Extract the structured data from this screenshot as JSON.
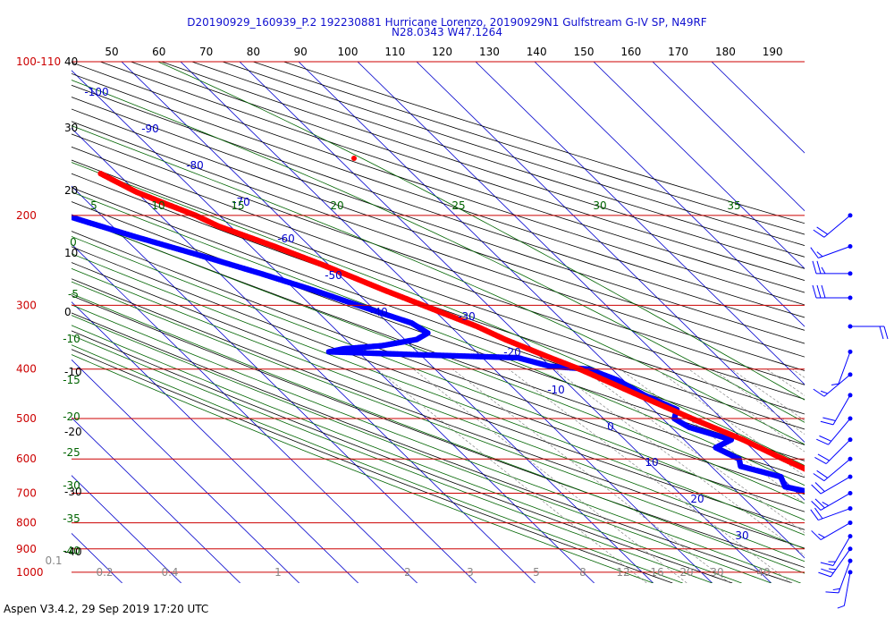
{
  "title": {
    "line1": "D20190929_160939_P.2 192230881 Hurricane Lorenzo, 20190929N1 Gulfstream G-IV SP, N49RF",
    "line2": "N28.0343 W47.1264"
  },
  "footer": "Aspen V3.4.2, 29 Sep 2019  17:20 UTC",
  "colors": {
    "temperature": "#ff0000",
    "dewpoint": "#0000ff",
    "isobar": "#cc0000",
    "isotherm": "#0000cc",
    "dry_adiabat": "#000000",
    "moist_adiabat": "#006400",
    "mixing_ratio": "#888888",
    "title": "#1010d0"
  },
  "chart_data": {
    "type": "skew-t log-p sounding",
    "y_axis_pressure_hPa": [
      "100-110",
      "200",
      "300",
      "400",
      "500",
      "600",
      "700",
      "800",
      "900",
      "1000"
    ],
    "y_axis_height_kft": [
      "40",
      "30",
      "20",
      "10",
      "0",
      "-10",
      "-20",
      "-30",
      "-40"
    ],
    "top_axis_temperature_F": [
      "50",
      "60",
      "70",
      "80",
      "90",
      "100",
      "110",
      "120",
      "130",
      "140",
      "150",
      "160",
      "170",
      "180",
      "190"
    ],
    "isotherm_labels_C": [
      "-100",
      "-90",
      "-80",
      "-70",
      "-60",
      "-50",
      "-40",
      "-30",
      "-20",
      "-10",
      "0",
      "10",
      "20",
      "30"
    ],
    "moist_adiabat_labels_C": [
      "5",
      "10",
      "15",
      "20",
      "25",
      "30",
      "35",
      "0",
      "-5",
      "-10",
      "-15",
      "-20",
      "-25",
      "-30",
      "-35",
      "-40"
    ],
    "mixing_ratio_labels_gkg": [
      "0.1",
      "0.2",
      "0.4",
      "1",
      "2",
      "3",
      "5",
      "8",
      "12",
      "16",
      "20",
      "30",
      "40"
    ],
    "temperature_profile_C": [
      {
        "p": 1000,
        "t": 27.5
      },
      {
        "p": 980,
        "t": 25
      },
      {
        "p": 950,
        "t": 24
      },
      {
        "p": 900,
        "t": 21.5
      },
      {
        "p": 850,
        "t": 18.5
      },
      {
        "p": 800,
        "t": 16
      },
      {
        "p": 750,
        "t": 14
      },
      {
        "p": 700,
        "t": 11
      },
      {
        "p": 650,
        "t": 7
      },
      {
        "p": 600,
        "t": 3.5
      },
      {
        "p": 550,
        "t": 0
      },
      {
        "p": 500,
        "t": -5
      },
      {
        "p": 450,
        "t": -10
      },
      {
        "p": 400,
        "t": -15.5
      },
      {
        "p": 380,
        "t": -18.5
      },
      {
        "p": 350,
        "t": -23
      },
      {
        "p": 330,
        "t": -25.5
      },
      {
        "p": 300,
        "t": -31
      },
      {
        "p": 280,
        "t": -35
      },
      {
        "p": 250,
        "t": -41
      },
      {
        "p": 230,
        "t": -46
      },
      {
        "p": 210,
        "t": -52
      },
      {
        "p": 200,
        "t": -54
      },
      {
        "p": 190,
        "t": -57
      },
      {
        "p": 180,
        "t": -60
      },
      {
        "p": 170,
        "t": -62
      },
      {
        "p": 165,
        "t": -63
      }
    ],
    "dewpoint_profile_C": [
      {
        "p": 1000,
        "t": 22
      },
      {
        "p": 980,
        "t": 17
      },
      {
        "p": 960,
        "t": 14
      },
      {
        "p": 930,
        "t": 11
      },
      {
        "p": 900,
        "t": 9
      },
      {
        "p": 880,
        "t": 4
      },
      {
        "p": 850,
        "t": 2
      },
      {
        "p": 820,
        "t": 1
      },
      {
        "p": 800,
        "t": 1
      },
      {
        "p": 780,
        "t": 2
      },
      {
        "p": 760,
        "t": -1
      },
      {
        "p": 730,
        "t": 3
      },
      {
        "p": 700,
        "t": 3
      },
      {
        "p": 680,
        "t": -1
      },
      {
        "p": 650,
        "t": 0
      },
      {
        "p": 620,
        "t": -5
      },
      {
        "p": 600,
        "t": -4
      },
      {
        "p": 570,
        "t": -6
      },
      {
        "p": 550,
        "t": -2
      },
      {
        "p": 520,
        "t": -7
      },
      {
        "p": 500,
        "t": -8
      },
      {
        "p": 480,
        "t": -6
      },
      {
        "p": 450,
        "t": -9
      },
      {
        "p": 420,
        "t": -11
      },
      {
        "p": 400,
        "t": -14
      },
      {
        "p": 395,
        "t": -20
      },
      {
        "p": 380,
        "t": -24
      },
      {
        "p": 375,
        "t": -40
      },
      {
        "p": 370,
        "t": -55
      },
      {
        "p": 365,
        "t": -52
      },
      {
        "p": 360,
        "t": -45
      },
      {
        "p": 350,
        "t": -38
      },
      {
        "p": 340,
        "t": -35
      },
      {
        "p": 325,
        "t": -36
      },
      {
        "p": 300,
        "t": -42
      },
      {
        "p": 280,
        "t": -47
      },
      {
        "p": 260,
        "t": -53
      },
      {
        "p": 240,
        "t": -60
      },
      {
        "p": 220,
        "t": -68
      },
      {
        "p": 205,
        "t": -74
      },
      {
        "p": 200,
        "t": -76
      }
    ],
    "wind_barbs": [
      {
        "p": 200,
        "dir": 230,
        "spd": 20
      },
      {
        "p": 230,
        "dir": 250,
        "spd": 15
      },
      {
        "p": 260,
        "dir": 270,
        "spd": 25
      },
      {
        "p": 290,
        "dir": 270,
        "spd": 30
      },
      {
        "p": 330,
        "dir": 90,
        "spd": 20
      },
      {
        "p": 370,
        "dir": 200,
        "spd": 5
      },
      {
        "p": 410,
        "dir": 230,
        "spd": 15
      },
      {
        "p": 450,
        "dir": 210,
        "spd": 20
      },
      {
        "p": 500,
        "dir": 220,
        "spd": 20
      },
      {
        "p": 550,
        "dir": 225,
        "spd": 20
      },
      {
        "p": 600,
        "dir": 230,
        "spd": 20
      },
      {
        "p": 650,
        "dir": 240,
        "spd": 20
      },
      {
        "p": 700,
        "dir": 240,
        "spd": 25
      },
      {
        "p": 750,
        "dir": 250,
        "spd": 20
      },
      {
        "p": 800,
        "dir": 240,
        "spd": 15
      },
      {
        "p": 850,
        "dir": 210,
        "spd": 15
      },
      {
        "p": 900,
        "dir": 215,
        "spd": 25
      },
      {
        "p": 950,
        "dir": 200,
        "spd": 15
      },
      {
        "p": 1000,
        "dir": 190,
        "spd": 5
      }
    ]
  }
}
